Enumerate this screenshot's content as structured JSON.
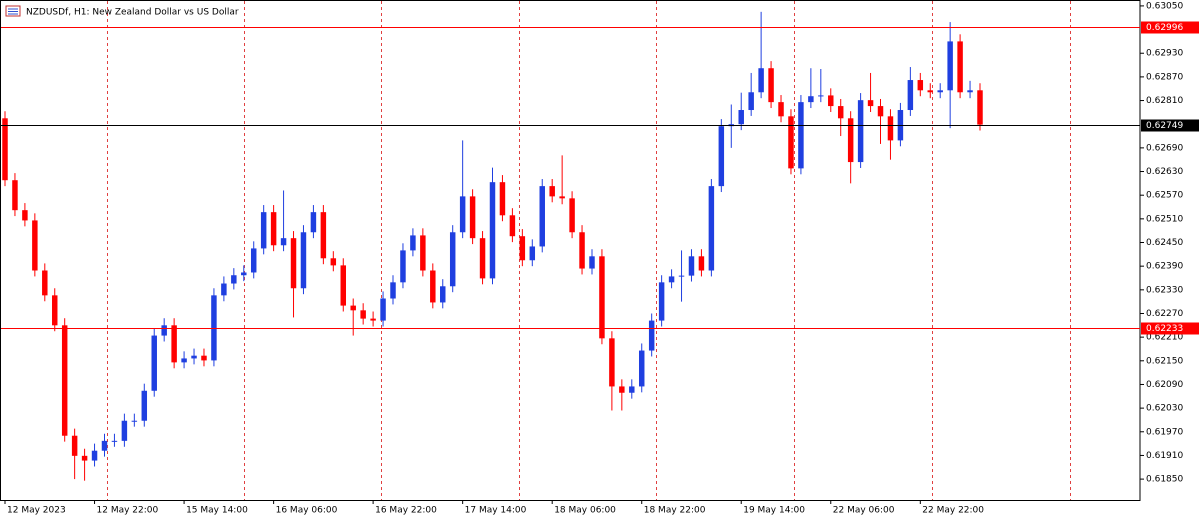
{
  "chart_data": {
    "type": "candlestick",
    "title": "NZDUSDf, H1:  New Zealand Dollar vs US Dollar",
    "up_color": "#1f3fe0",
    "down_color": "#ff0000",
    "ylim": [
      0.61797,
      0.63065
    ],
    "yticks": [
      {
        "value": 0.6305,
        "label": "0.63050"
      },
      {
        "value": 0.6293,
        "label": "0.62930"
      },
      {
        "value": 0.6287,
        "label": "0.62870"
      },
      {
        "value": 0.6281,
        "label": "0.62810"
      },
      {
        "value": 0.6269,
        "label": "0.62690"
      },
      {
        "value": 0.6263,
        "label": "0.62630"
      },
      {
        "value": 0.6257,
        "label": "0.62570"
      },
      {
        "value": 0.6251,
        "label": "0.62510"
      },
      {
        "value": 0.6245,
        "label": "0.62450"
      },
      {
        "value": 0.6239,
        "label": "0.62390"
      },
      {
        "value": 0.6233,
        "label": "0.62330"
      },
      {
        "value": 0.6227,
        "label": "0.62270"
      },
      {
        "value": 0.6221,
        "label": "0.62210"
      },
      {
        "value": 0.6215,
        "label": "0.62150"
      },
      {
        "value": 0.6209,
        "label": "0.62090"
      },
      {
        "value": 0.6203,
        "label": "0.62030"
      },
      {
        "value": 0.6197,
        "label": "0.61970"
      },
      {
        "value": 0.6191,
        "label": "0.61910"
      },
      {
        "value": 0.6185,
        "label": "0.61850"
      }
    ],
    "xticks": [
      {
        "value": 0,
        "label": "12 May 2023"
      },
      {
        "value": 9,
        "label": "12 May 22:00"
      },
      {
        "value": 18,
        "label": "15 May 14:00"
      },
      {
        "value": 27,
        "label": "16 May 06:00"
      },
      {
        "value": 37,
        "label": "16 May 22:00"
      },
      {
        "value": 46,
        "label": "17 May 14:00"
      },
      {
        "value": 55,
        "label": "18 May 06:00"
      },
      {
        "value": 64,
        "label": "18 May 22:00"
      },
      {
        "value": 74,
        "label": "19 May 14:00"
      },
      {
        "value": 83,
        "label": "22 May 06:00"
      },
      {
        "value": 92,
        "label": "22 May 22:00"
      }
    ],
    "levels": [
      {
        "value": 0.62996,
        "color": "#ff0000"
      },
      {
        "value": 0.62749,
        "color": "#000000"
      },
      {
        "value": 0.62233,
        "color": "#ff0000"
      }
    ],
    "open": [
      0.62765,
      0.62608,
      0.62532,
      0.62506,
      0.62379,
      0.62316,
      0.6224,
      0.6196,
      0.61909,
      0.61897,
      0.61922,
      0.61947,
      0.61947,
      0.61998,
      0.61998,
      0.62074,
      0.62214,
      0.6224,
      0.62146,
      0.62156,
      0.62163,
      0.62151,
      0.62316,
      0.62346,
      0.62367,
      0.62374,
      0.62435,
      0.62527,
      0.62443,
      0.62461,
      0.62334,
      0.62476,
      0.62527,
      0.6241,
      0.62392,
      0.6229,
      0.62278,
      0.62257,
      0.62252,
      0.62308,
      0.62349,
      0.6243,
      0.62468,
      0.62379,
      0.62298,
      0.62339,
      0.62476,
      0.62567,
      0.62461,
      0.62359,
      0.62603,
      0.62519,
      0.62466,
      0.62405,
      0.6244,
      0.62593,
      0.62567,
      0.62562,
      0.62476,
      0.62384,
      0.62415,
      0.62207,
      0.62085,
      0.62069,
      0.62085,
      0.62176,
      0.62252,
      0.62349,
      0.62364,
      0.62366,
      0.62415,
      0.62379,
      0.62593,
      0.62745,
      0.6275,
      0.62786,
      0.62831,
      0.62892,
      0.62806,
      0.6277,
      0.62638,
      0.62806,
      0.62821,
      0.62823,
      0.62796,
      0.62765,
      0.62654,
      0.62811,
      0.62796,
      0.6277,
      0.62709,
      0.62786,
      0.62862,
      0.62836,
      0.62831,
      0.62836,
      0.6296,
      0.62831,
      0.62836
    ],
    "high": [
      0.62783,
      0.62626,
      0.6255,
      0.62524,
      0.62397,
      0.62334,
      0.62258,
      0.61978,
      0.61927,
      0.6194,
      0.61965,
      0.61965,
      0.62016,
      0.62016,
      0.62092,
      0.62232,
      0.62258,
      0.62258,
      0.62174,
      0.62181,
      0.62181,
      0.62334,
      0.62364,
      0.62385,
      0.62392,
      0.62453,
      0.62545,
      0.62545,
      0.62582,
      0.62479,
      0.62494,
      0.62545,
      0.62545,
      0.62428,
      0.6241,
      0.62308,
      0.62296,
      0.62275,
      0.62326,
      0.62367,
      0.62448,
      0.62486,
      0.62486,
      0.62397,
      0.62357,
      0.62494,
      0.62709,
      0.62585,
      0.62479,
      0.6264,
      0.62621,
      0.62537,
      0.62484,
      0.62458,
      0.62611,
      0.62611,
      0.62671,
      0.6258,
      0.62494,
      0.62433,
      0.62433,
      0.62225,
      0.62103,
      0.62103,
      0.62194,
      0.6227,
      0.62367,
      0.62382,
      0.6243,
      0.62433,
      0.62433,
      0.62611,
      0.62763,
      0.628,
      0.6283,
      0.6288,
      0.63035,
      0.6291,
      0.62824,
      0.62788,
      0.62824,
      0.62892,
      0.6289,
      0.62841,
      0.62814,
      0.62783,
      0.62829,
      0.6288,
      0.62814,
      0.62788,
      0.62804,
      0.62895,
      0.6288,
      0.62854,
      0.62854,
      0.63009,
      0.62978,
      0.6286,
      0.62854
    ],
    "low": [
      0.62593,
      0.62517,
      0.62491,
      0.62364,
      0.62301,
      0.62225,
      0.61945,
      0.6185,
      0.61846,
      0.61882,
      0.61907,
      0.61932,
      0.61932,
      0.61983,
      0.61983,
      0.62059,
      0.62199,
      0.62131,
      0.62131,
      0.62141,
      0.62136,
      0.62136,
      0.62301,
      0.62331,
      0.62352,
      0.62359,
      0.6242,
      0.62428,
      0.62428,
      0.6226,
      0.62319,
      0.62461,
      0.62395,
      0.62377,
      0.62275,
      0.62214,
      0.62242,
      0.62237,
      0.62237,
      0.62293,
      0.62334,
      0.62415,
      0.62364,
      0.62283,
      0.62283,
      0.62324,
      0.62461,
      0.62446,
      0.62344,
      0.62344,
      0.62504,
      0.62451,
      0.6239,
      0.6239,
      0.62425,
      0.62552,
      0.62547,
      0.62461,
      0.62369,
      0.62369,
      0.62192,
      0.62024,
      0.62024,
      0.62054,
      0.6207,
      0.62161,
      0.62237,
      0.62334,
      0.623,
      0.62351,
      0.62364,
      0.62364,
      0.62578,
      0.6269,
      0.62735,
      0.62771,
      0.62816,
      0.62791,
      0.62755,
      0.62623,
      0.62623,
      0.62791,
      0.62806,
      0.62781,
      0.6272,
      0.626,
      0.62639,
      0.62781,
      0.627,
      0.6266,
      0.62694,
      0.62771,
      0.62821,
      0.62816,
      0.62816,
      0.6274,
      0.62816,
      0.62816,
      0.62734
    ],
    "close": [
      0.62608,
      0.62532,
      0.62506,
      0.62379,
      0.62316,
      0.6224,
      0.6196,
      0.61909,
      0.61897,
      0.61922,
      0.61947,
      0.61947,
      0.61998,
      0.61998,
      0.62074,
      0.62214,
      0.6224,
      0.62146,
      0.62156,
      0.62163,
      0.62151,
      0.62316,
      0.62346,
      0.62367,
      0.62374,
      0.62435,
      0.62527,
      0.62443,
      0.62461,
      0.62334,
      0.62476,
      0.62527,
      0.6241,
      0.62392,
      0.6229,
      0.62278,
      0.62257,
      0.62252,
      0.62308,
      0.62349,
      0.6243,
      0.62468,
      0.62379,
      0.62298,
      0.62339,
      0.62476,
      0.62567,
      0.62461,
      0.62359,
      0.62603,
      0.62519,
      0.62466,
      0.62405,
      0.6244,
      0.62593,
      0.62567,
      0.62562,
      0.62476,
      0.62384,
      0.62415,
      0.62207,
      0.62085,
      0.62069,
      0.62085,
      0.62176,
      0.62252,
      0.62349,
      0.62364,
      0.62366,
      0.62415,
      0.62379,
      0.62593,
      0.62745,
      0.6275,
      0.62786,
      0.62831,
      0.62892,
      0.62806,
      0.6277,
      0.62638,
      0.62806,
      0.62821,
      0.62823,
      0.62796,
      0.62765,
      0.62654,
      0.62811,
      0.62796,
      0.6277,
      0.62709,
      0.62786,
      0.62862,
      0.62836,
      0.62831,
      0.62836,
      0.6296,
      0.62831,
      0.62836,
      0.62749
    ]
  }
}
